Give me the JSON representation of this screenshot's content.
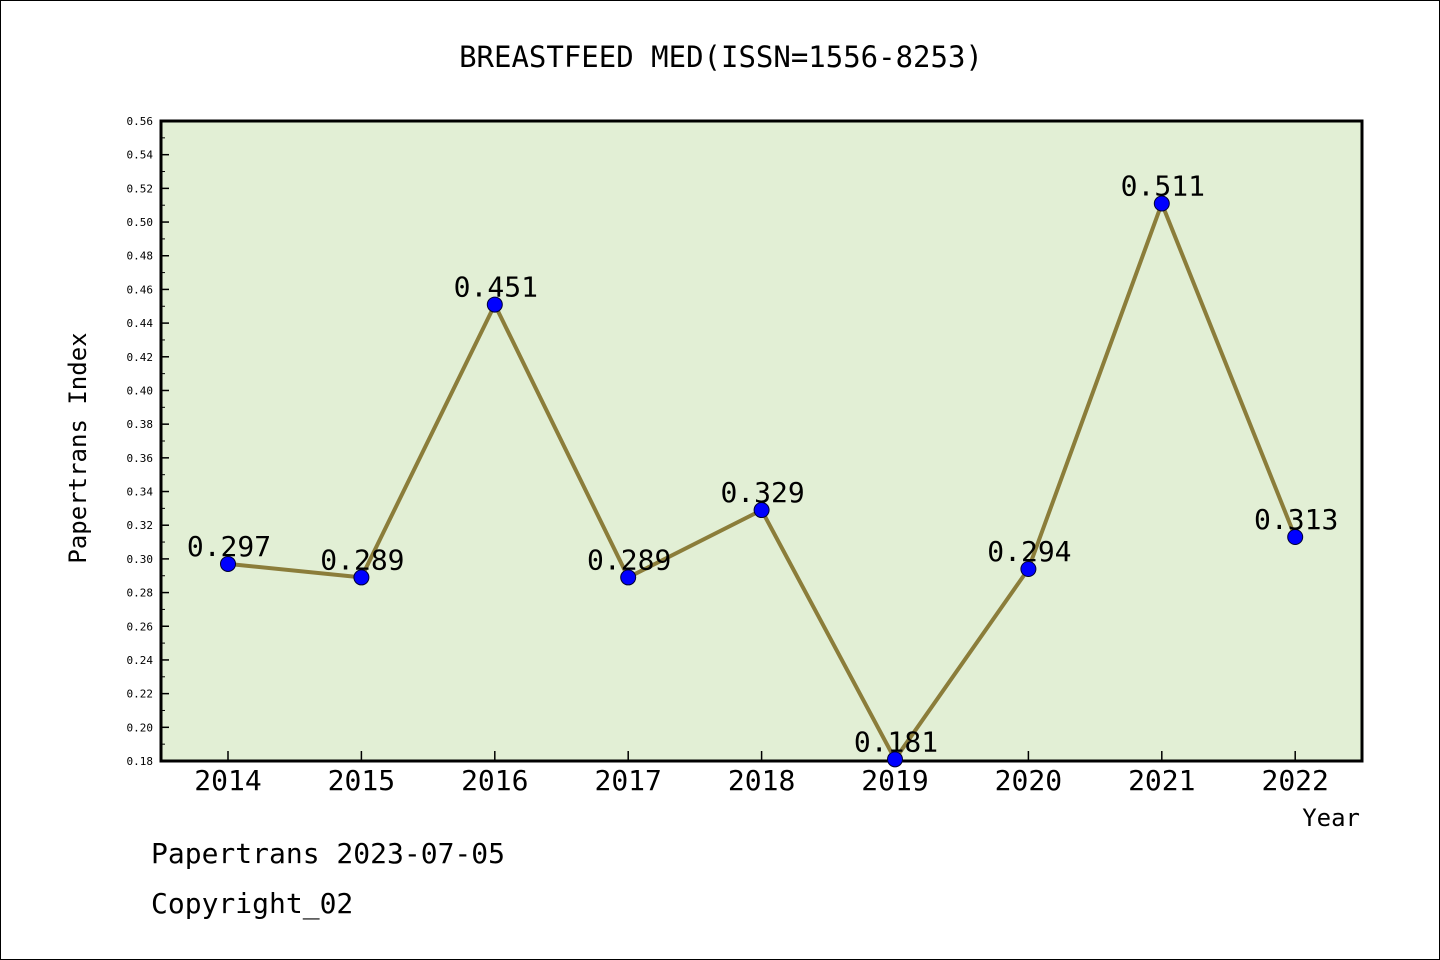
{
  "chart_data": {
    "type": "line",
    "title": "BREASTFEED MED(ISSN=1556-8253)",
    "xlabel": "Year",
    "ylabel": "Papertrans Index",
    "categories": [
      "2014",
      "2015",
      "2016",
      "2017",
      "2018",
      "2019",
      "2020",
      "2021",
      "2022"
    ],
    "series": [
      {
        "values": [
          0.297,
          0.289,
          0.451,
          0.289,
          0.329,
          0.181,
          0.294,
          0.511,
          0.313
        ],
        "labels": [
          "0.297",
          "0.289",
          "0.451",
          "0.289",
          "0.329",
          "0.181",
          "0.294",
          "0.511",
          "0.313"
        ],
        "line_color": "#8b7d3a",
        "marker_color": "#0000ff"
      }
    ],
    "ylim": [
      0.18,
      0.56
    ],
    "yticks": [
      "0.18",
      "0.20",
      "0.22",
      "0.24",
      "0.26",
      "0.28",
      "0.30",
      "0.32",
      "0.34",
      "0.36",
      "0.38",
      "0.40",
      "0.42",
      "0.44",
      "0.46",
      "0.48",
      "0.50",
      "0.52",
      "0.54",
      "0.56"
    ],
    "plot_background": "#e2efd5",
    "grid": false,
    "legend": "none"
  },
  "footer": {
    "line1": "Papertrans 2023-07-05",
    "line2": "Copyright_02"
  }
}
